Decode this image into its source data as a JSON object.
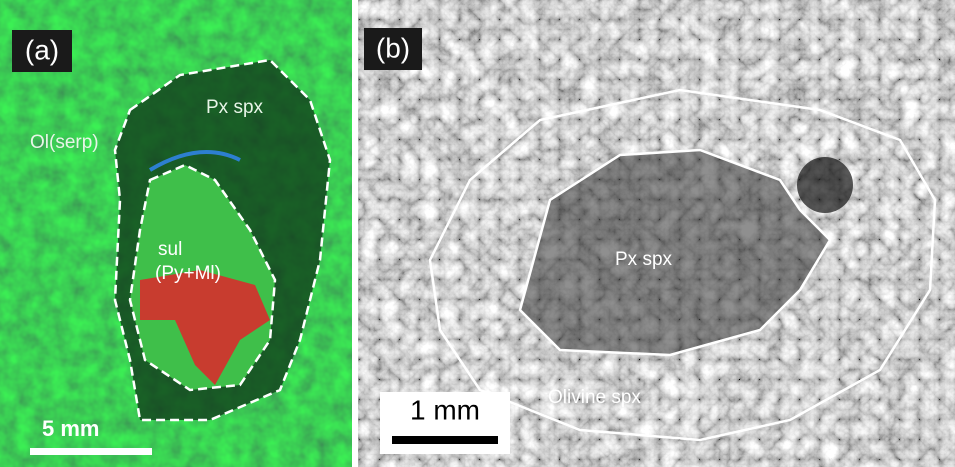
{
  "panel_a": {
    "label": "(a)",
    "region_labels": [
      "Ol(serp)",
      "Px spx",
      "sul",
      "(Py+Ml)"
    ],
    "scale_bar": "5 mm"
  },
  "panel_b": {
    "label": "(b)",
    "region_labels": [
      "Px spx",
      "Olivine spx"
    ],
    "scale_bar": "1 mm"
  }
}
